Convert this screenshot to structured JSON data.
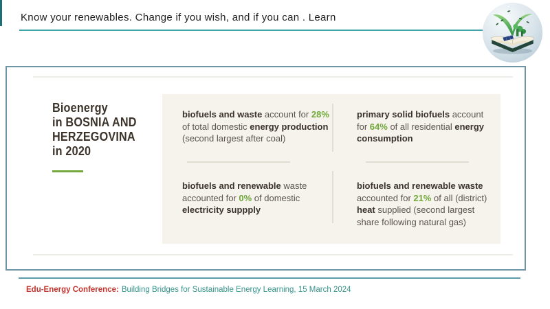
{
  "header": {
    "title": "Know your renewables. Change if you wish, and if you can . Learn"
  },
  "icons": {
    "logo": "open-book-with-green-plants-logo"
  },
  "title_card": {
    "lines": [
      "Bioenergy",
      "in BOSNIA AND",
      "HERZEGOVINA",
      "in 2020"
    ]
  },
  "panel": {
    "blocks": [
      {
        "name": "energy-production",
        "percent": "28%",
        "lines": [
          [
            {
              "t": "biofuels and waste",
              "s": "b"
            },
            {
              "t": " account for ",
              "s": "p"
            },
            {
              "t": "28%",
              "s": "g"
            }
          ],
          [
            {
              "t": "of total domestic ",
              "s": "p"
            },
            {
              "t": "energy production",
              "s": "b"
            }
          ],
          [
            {
              "t": "(second largest after coal)",
              "s": "p"
            }
          ]
        ]
      },
      {
        "name": "residential-consumption",
        "percent": "64%",
        "lines": [
          [
            {
              "t": "primary solid biofuels",
              "s": "b"
            },
            {
              "t": " account",
              "s": "p"
            }
          ],
          [
            {
              "t": "for ",
              "s": "p"
            },
            {
              "t": "64%",
              "s": "g"
            },
            {
              "t": " of all residential ",
              "s": "p"
            },
            {
              "t": "energy",
              "s": "b"
            }
          ],
          [
            {
              "t": "consumption",
              "s": "b"
            }
          ]
        ]
      },
      {
        "name": "electricity-supply",
        "percent": "0%",
        "lines": [
          [
            {
              "t": "biofuels and renewable",
              "s": "b"
            },
            {
              "t": " waste",
              "s": "p"
            }
          ],
          [
            {
              "t": "accounted for ",
              "s": "p"
            },
            {
              "t": "0%",
              "s": "g"
            },
            {
              "t": " of domestic",
              "s": "p"
            }
          ],
          [
            {
              "t": "electricity suppply",
              "s": "b"
            }
          ]
        ]
      },
      {
        "name": "district-heat",
        "percent": "21%",
        "lines": [
          [
            {
              "t": "biofuels and renewable waste",
              "s": "b"
            }
          ],
          [
            {
              "t": "accounted for ",
              "s": "p"
            },
            {
              "t": "21%",
              "s": "g"
            },
            {
              "t": " of all (district)",
              "s": "p"
            }
          ],
          [
            {
              "t": "heat",
              "s": "b"
            },
            {
              "t": " supplied (second largest",
              "s": "p"
            }
          ],
          [
            {
              "t": "share following natural gas)",
              "s": "p"
            }
          ]
        ]
      }
    ]
  },
  "footer": {
    "conference_label": "Edu-Energy Conference:",
    "tagline": "Building Bridges for Sustainable Energy Learning, 15 March 2024"
  },
  "colors": {
    "accent_green": "#74a83c",
    "percent_green": "#6fa839",
    "header_teal": "#3fa3a8",
    "footer_line_teal": "#5f9cab",
    "footer_text_teal": "#35948c",
    "conference_red": "#c3352e",
    "card_border_blue_gray": "#6f94a6",
    "panel_beige": "#f6f3ec",
    "title_brown": "#3c332a"
  }
}
